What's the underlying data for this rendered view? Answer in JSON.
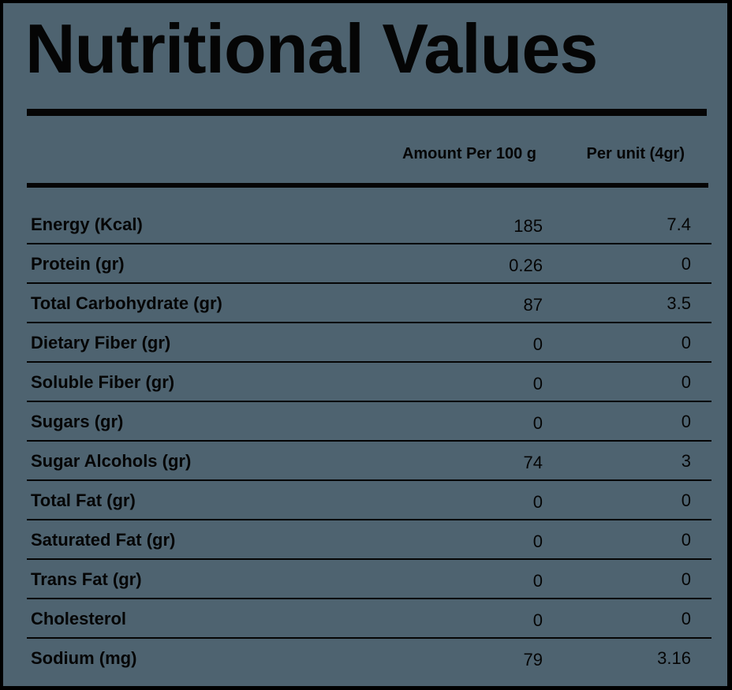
{
  "title": "Nutritional Values",
  "columns": {
    "per_100g": "Amount Per 100 g",
    "per_unit": "Per unit (4gr)"
  },
  "rows": [
    {
      "label": "Energy (Kcal)",
      "per_100g": "185",
      "per_unit": "7.4"
    },
    {
      "label": "Protein (gr)",
      "per_100g": "0.26",
      "per_unit": "0"
    },
    {
      "label": "Total Carbohydrate (gr)",
      "per_100g": "87",
      "per_unit": "3.5"
    },
    {
      "label": "Dietary Fiber (gr)",
      "per_100g": "0",
      "per_unit": "0"
    },
    {
      "label": "Soluble Fiber (gr)",
      "per_100g": "0",
      "per_unit": "0"
    },
    {
      "label": "Sugars (gr)",
      "per_100g": "0",
      "per_unit": "0"
    },
    {
      "label": "Sugar Alcohols (gr)",
      "per_100g": "74",
      "per_unit": "3"
    },
    {
      "label": "Total Fat (gr)",
      "per_100g": "0",
      "per_unit": "0"
    },
    {
      "label": "Saturated Fat (gr)",
      "per_100g": "0",
      "per_unit": "0"
    },
    {
      "label": "Trans Fat (gr)",
      "per_100g": "0",
      "per_unit": "0"
    },
    {
      "label": "Cholesterol",
      "per_100g": "0",
      "per_unit": "0"
    },
    {
      "label": "Sodium (mg)",
      "per_100g": "79",
      "per_unit": "3.16"
    }
  ],
  "colors": {
    "background": "#4e6370",
    "border": "#000000",
    "text": "#050505"
  }
}
